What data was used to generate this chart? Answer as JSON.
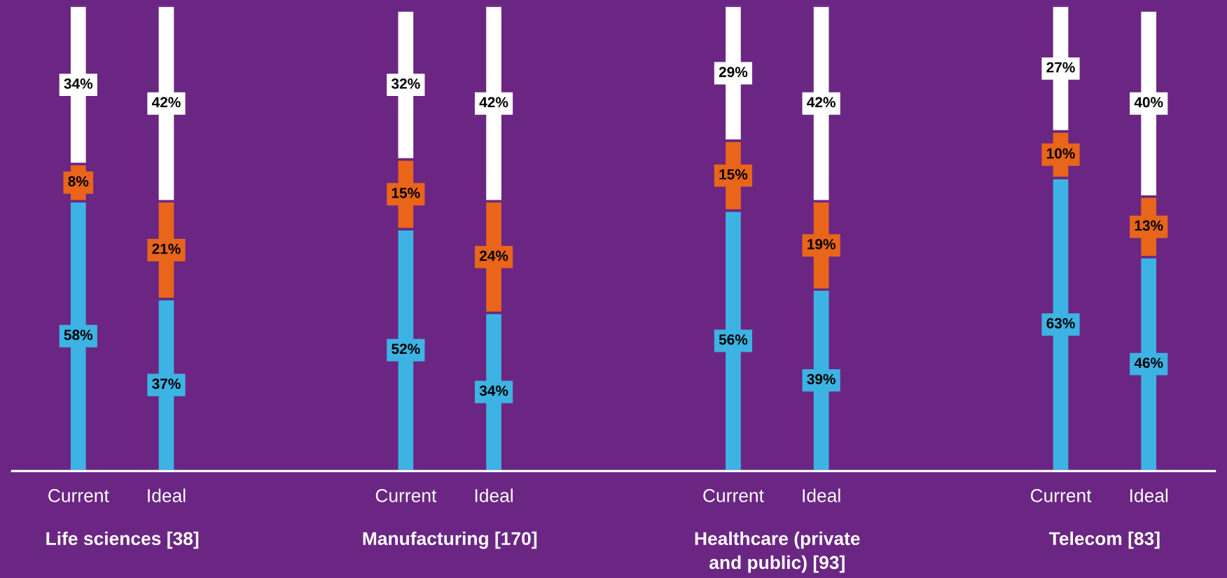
{
  "chart_data": {
    "type": "bar",
    "stacked": true,
    "tick_labels": "x",
    "grid": false,
    "legend": false,
    "categories": [
      "Current",
      "Ideal",
      "Current",
      "Ideal",
      "Current",
      "Ideal",
      "Current",
      "Ideal"
    ],
    "series": [
      {
        "color": "#3db3e3",
        "values": [
          58,
          37,
          52,
          34,
          56,
          39,
          63,
          46
        ],
        "value_labels": [
          "58%",
          "37%",
          "52%",
          "34%",
          "56%",
          "39%",
          "63%",
          "46%"
        ]
      },
      {
        "color": "#e8651a",
        "values": [
          8,
          21,
          15,
          24,
          15,
          19,
          10,
          13
        ],
        "value_labels": [
          "8%",
          "21%",
          "15%",
          "24%",
          "15%",
          "19%",
          "10%",
          "13%"
        ]
      },
      {
        "color": "#ffffff",
        "values": [
          34,
          42,
          32,
          42,
          29,
          42,
          27,
          40
        ],
        "value_labels": [
          "34%",
          "42%",
          "32%",
          "42%",
          "29%",
          "42%",
          "27%",
          "40%"
        ]
      }
    ],
    "annotations": [
      "Life sciences [38]",
      "Manufacturing [170]",
      "Healthcare (private\nand public) [93]",
      "Telecom [83]"
    ]
  }
}
